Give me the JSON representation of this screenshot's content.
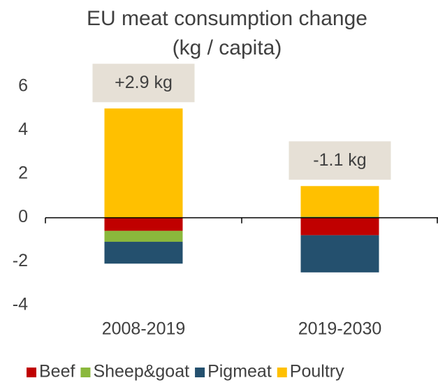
{
  "chart_data": {
    "type": "stacked_bar",
    "title": "EU meat consumption change",
    "subtitle": "(kg / capita)",
    "categories": [
      "2008-2019",
      "2019-2030"
    ],
    "series": [
      {
        "name": "Beef",
        "color": "#c00000",
        "values": [
          -0.6,
          -0.8
        ]
      },
      {
        "name": "Sheep&goat",
        "color": "#8ab83c",
        "values": [
          -0.5,
          0.05
        ]
      },
      {
        "name": "Pigmeat",
        "color": "#24506e",
        "values": [
          -1.0,
          -1.7
        ]
      },
      {
        "name": "Poultry",
        "color": "#ffc000",
        "values": [
          5.0,
          1.4
        ]
      }
    ],
    "annotations": [
      {
        "category": 0,
        "text": "+2.9 kg"
      },
      {
        "category": 1,
        "text": "-1.1 kg"
      }
    ],
    "ylim": [
      -5,
      7
    ],
    "yticks": [
      -4,
      -2,
      0,
      2,
      4,
      6
    ],
    "grid": false,
    "legend": "bottom"
  }
}
